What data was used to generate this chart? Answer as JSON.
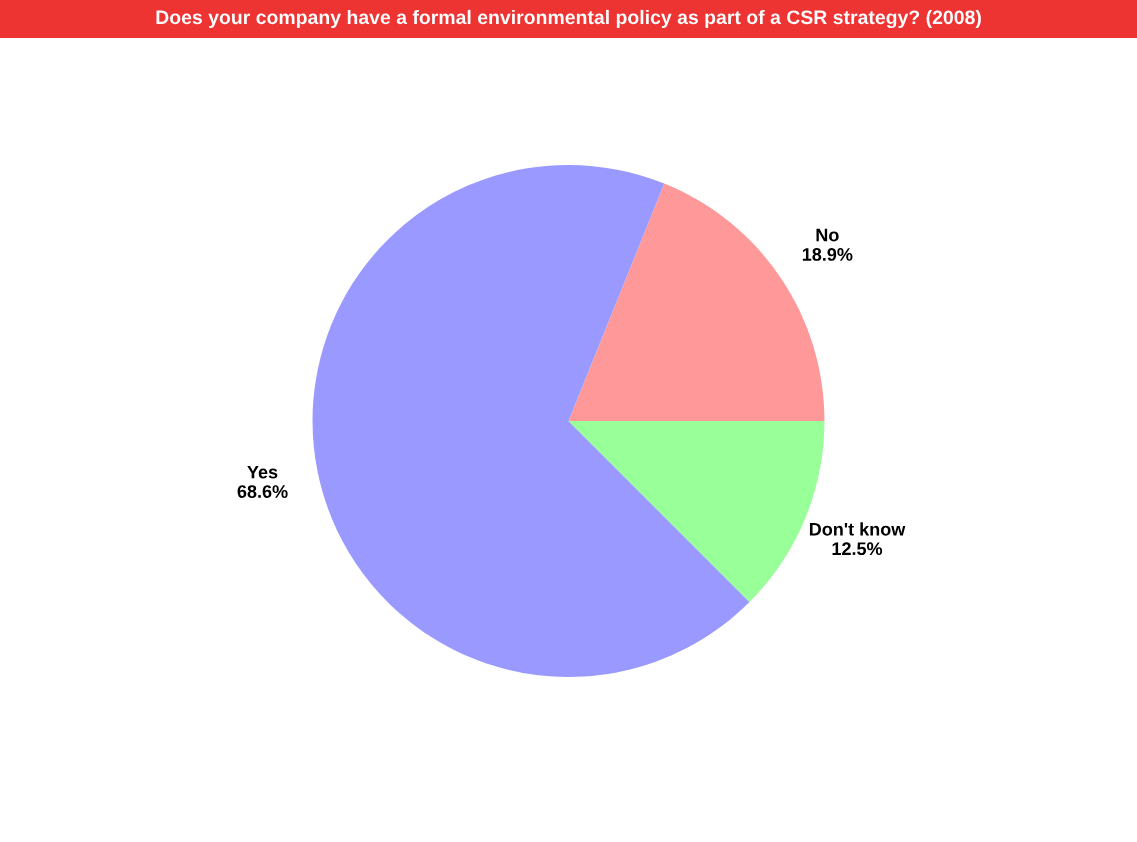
{
  "chart_data": {
    "type": "pie",
    "title": "Does your company have a formal environmental policy as part of a CSR strategy? (2008)",
    "categories": [
      "No",
      "Yes",
      "Don't know"
    ],
    "values": [
      18.9,
      68.6,
      12.5
    ],
    "value_labels": [
      "18.9%",
      "68.6%",
      "12.5%"
    ],
    "colors": [
      "#ff9999",
      "#9999ff",
      "#99ff99"
    ],
    "legend": false
  }
}
